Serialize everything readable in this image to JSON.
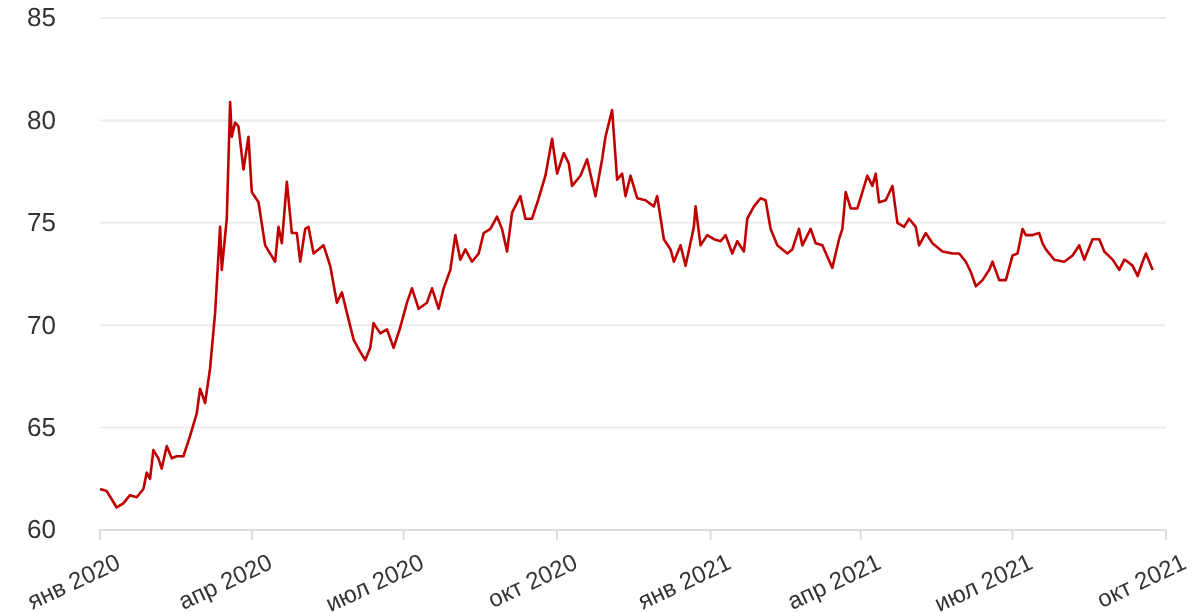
{
  "chart_data": {
    "type": "line",
    "grid": "y",
    "line_style": "solid",
    "marker": "none",
    "xlim": [
      "2020-01-01",
      "2021-10-01"
    ],
    "xticks": [
      {
        "value": "2020-01-01",
        "label": "янв 2020"
      },
      {
        "value": "2020-04-01",
        "label": "апр 2020"
      },
      {
        "value": "2020-07-01",
        "label": "июл 2020"
      },
      {
        "value": "2020-10-01",
        "label": "окт 2020"
      },
      {
        "value": "2021-01-01",
        "label": "янв 2021"
      },
      {
        "value": "2021-04-01",
        "label": "апр 2021"
      },
      {
        "value": "2021-07-01",
        "label": "июл 2021"
      },
      {
        "value": "2021-10-01",
        "label": "окт 2021"
      }
    ],
    "ylim": [
      60,
      85
    ],
    "yticks": [
      60,
      65,
      70,
      75,
      80,
      85
    ],
    "x": [
      "2020-01-01",
      "2020-01-05",
      "2020-01-08",
      "2020-01-11",
      "2020-01-15",
      "2020-01-19",
      "2020-01-23",
      "2020-01-27",
      "2020-01-29",
      "2020-01-31",
      "2020-02-02",
      "2020-02-05",
      "2020-02-07",
      "2020-02-10",
      "2020-02-13",
      "2020-02-16",
      "2020-02-20",
      "2020-02-24",
      "2020-02-28",
      "2020-03-01",
      "2020-03-04",
      "2020-03-07",
      "2020-03-10",
      "2020-03-13",
      "2020-03-14",
      "2020-03-17",
      "2020-03-19",
      "2020-03-20",
      "2020-03-22",
      "2020-03-24",
      "2020-03-27",
      "2020-03-30",
      "2020-04-01",
      "2020-04-05",
      "2020-04-09",
      "2020-04-15",
      "2020-04-17",
      "2020-04-19",
      "2020-04-22",
      "2020-04-25",
      "2020-04-28",
      "2020-04-30",
      "2020-05-03",
      "2020-05-05",
      "2020-05-08",
      "2020-05-14",
      "2020-05-18",
      "2020-05-22",
      "2020-05-25",
      "2020-05-28",
      "2020-06-01",
      "2020-06-05",
      "2020-06-08",
      "2020-06-11",
      "2020-06-13",
      "2020-06-17",
      "2020-06-21",
      "2020-06-25",
      "2020-06-29",
      "2020-07-03",
      "2020-07-06",
      "2020-07-10",
      "2020-07-15",
      "2020-07-18",
      "2020-07-22",
      "2020-07-25",
      "2020-07-29",
      "2020-08-01",
      "2020-08-04",
      "2020-08-07",
      "2020-08-11",
      "2020-08-15",
      "2020-08-18",
      "2020-08-22",
      "2020-08-26",
      "2020-08-29",
      "2020-09-01",
      "2020-09-04",
      "2020-09-09",
      "2020-09-12",
      "2020-09-16",
      "2020-09-20",
      "2020-09-24",
      "2020-09-28",
      "2020-10-01",
      "2020-10-05",
      "2020-10-08",
      "2020-10-10",
      "2020-10-15",
      "2020-10-19",
      "2020-10-24",
      "2020-10-28",
      "2020-10-30",
      "2020-11-03",
      "2020-11-06",
      "2020-11-09",
      "2020-11-11",
      "2020-11-14",
      "2020-11-18",
      "2020-11-23",
      "2020-11-28",
      "2020-11-30",
      "2020-12-04",
      "2020-12-08",
      "2020-12-10",
      "2020-12-14",
      "2020-12-17",
      "2020-12-22",
      "2020-12-23",
      "2020-12-26",
      "2020-12-30",
      "2021-01-03",
      "2021-01-07",
      "2021-01-10",
      "2021-01-14",
      "2021-01-17",
      "2021-01-21",
      "2021-01-23",
      "2021-01-27",
      "2021-01-31",
      "2021-02-03",
      "2021-02-06",
      "2021-02-10",
      "2021-02-16",
      "2021-02-19",
      "2021-02-23",
      "2021-02-25",
      "2021-03-02",
      "2021-03-05",
      "2021-03-09",
      "2021-03-15",
      "2021-03-19",
      "2021-03-21",
      "2021-03-23",
      "2021-03-26",
      "2021-03-30",
      "2021-04-02",
      "2021-04-05",
      "2021-04-08",
      "2021-04-10",
      "2021-04-12",
      "2021-04-16",
      "2021-04-20",
      "2021-04-23",
      "2021-04-27",
      "2021-04-30",
      "2021-05-04",
      "2021-05-06",
      "2021-05-10",
      "2021-05-14",
      "2021-05-20",
      "2021-05-26",
      "2021-05-30",
      "2021-06-03",
      "2021-06-06",
      "2021-06-09",
      "2021-06-13",
      "2021-06-17",
      "2021-06-19",
      "2021-06-23",
      "2021-06-27",
      "2021-07-01",
      "2021-07-04",
      "2021-07-07",
      "2021-07-09",
      "2021-07-13",
      "2021-07-17",
      "2021-07-19",
      "2021-07-21",
      "2021-07-26",
      "2021-08-01",
      "2021-08-06",
      "2021-08-10",
      "2021-08-13",
      "2021-08-18",
      "2021-08-22",
      "2021-08-25",
      "2021-08-30",
      "2021-09-03",
      "2021-09-06",
      "2021-09-08",
      "2021-09-11",
      "2021-09-14",
      "2021-09-17",
      "2021-09-19",
      "2021-09-23"
    ],
    "series": [
      {
        "color": "#c00000",
        "values": [
          62.0,
          61.9,
          61.5,
          61.1,
          61.3,
          61.7,
          61.6,
          62.0,
          62.8,
          62.5,
          63.9,
          63.5,
          63.0,
          64.1,
          63.5,
          63.6,
          63.6,
          64.6,
          65.7,
          66.9,
          66.2,
          67.9,
          70.6,
          74.8,
          72.7,
          75.2,
          80.9,
          79.2,
          79.9,
          79.7,
          77.6,
          79.2,
          76.5,
          76.0,
          73.9,
          73.1,
          74.8,
          74.0,
          77.0,
          74.5,
          74.5,
          73.1,
          74.7,
          74.8,
          73.5,
          73.9,
          72.9,
          71.1,
          71.6,
          70.6,
          69.3,
          68.7,
          68.3,
          68.9,
          70.1,
          69.6,
          69.8,
          68.9,
          69.9,
          71.1,
          71.8,
          70.8,
          71.1,
          71.8,
          70.8,
          71.8,
          72.7,
          74.4,
          73.2,
          73.7,
          73.1,
          73.5,
          74.5,
          74.7,
          75.3,
          74.7,
          73.6,
          75.5,
          76.3,
          75.2,
          75.2,
          76.2,
          77.3,
          79.1,
          77.4,
          78.4,
          77.9,
          76.8,
          77.3,
          78.1,
          76.3,
          78.1,
          79.2,
          80.5,
          77.1,
          77.4,
          76.3,
          77.3,
          76.2,
          76.1,
          75.8,
          76.3,
          74.2,
          73.7,
          73.1,
          73.9,
          72.9,
          74.8,
          75.8,
          73.9,
          74.4,
          74.2,
          74.1,
          74.4,
          73.5,
          74.1,
          73.6,
          75.2,
          75.8,
          76.2,
          76.1,
          74.7,
          73.9,
          73.5,
          73.7,
          74.7,
          73.9,
          74.7,
          74.0,
          73.9,
          72.8,
          74.2,
          74.7,
          76.5,
          75.7,
          75.7,
          76.5,
          77.3,
          76.8,
          77.4,
          76.0,
          76.1,
          76.8,
          75.0,
          74.8,
          75.2,
          74.8,
          73.9,
          74.5,
          74.0,
          73.6,
          73.5,
          73.5,
          73.1,
          72.6,
          71.9,
          72.2,
          72.7,
          73.1,
          72.2,
          72.2,
          73.4,
          73.5,
          74.7,
          74.4,
          74.4,
          74.5,
          74.0,
          73.7,
          73.2,
          73.1,
          73.4,
          73.9,
          73.2,
          74.2,
          74.2,
          73.6,
          73.2,
          72.7,
          73.2,
          73.1,
          72.9,
          72.4,
          73.1,
          73.5,
          72.7
        ]
      }
    ]
  }
}
